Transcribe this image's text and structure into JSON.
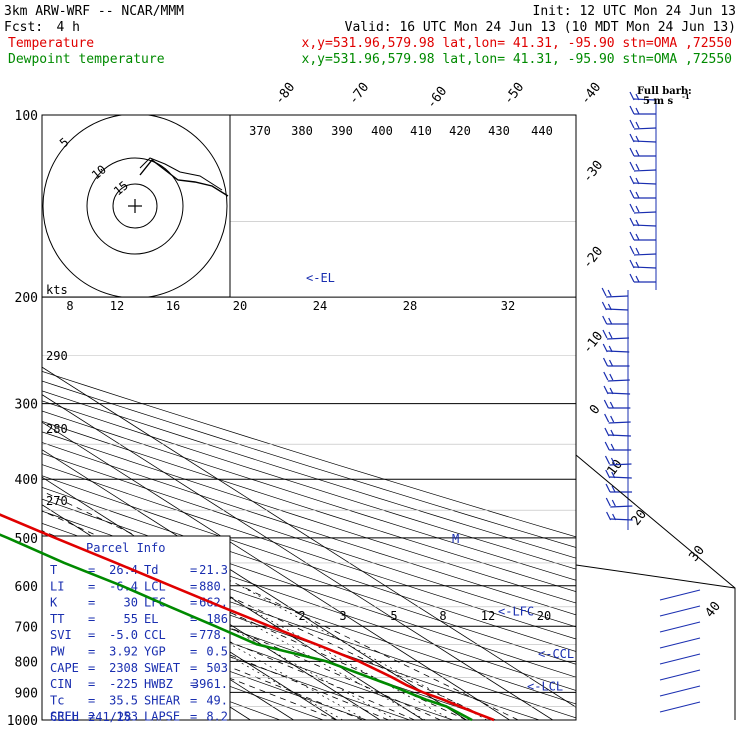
{
  "header": {
    "model": "3km ARW-WRF -- NCAR/MMM",
    "init": "Init: 12 UTC Mon 24 Jun 13",
    "fcst_label": "Fcst:",
    "fcst_value": "4 h",
    "valid": "Valid: 16 UTC Mon 24 Jun 13 (10 MDT Mon 24 Jun 13)",
    "temp_label": "Temperature",
    "temp_meta": "x,y=531.96,579.98   lat,lon= 41.31, -95.90  stn=OMA ,72550",
    "dew_label": "Dewpoint temperature",
    "dew_meta": "x,y=531.96,579.98   lat,lon= 41.31, -95.90  stn=OMA ,72550",
    "barb_title": "Full barb:",
    "barb_unit": "5 m s",
    "barb_sup": "-1"
  },
  "colors": {
    "temperature": "#e00000",
    "dewpoint": "#008a00",
    "text_blue": "#1a2fb0"
  },
  "chart_data": {
    "type": "line",
    "title": "",
    "ylabel": "",
    "pressure_levels": [
      100,
      200,
      300,
      400,
      500,
      600,
      700,
      800,
      900,
      1000
    ],
    "isotherm_labels": [
      "-80",
      "-70",
      "-60",
      "-50",
      "-40",
      "-30",
      "-20",
      "-10",
      "0",
      "10",
      "20",
      "30",
      "40"
    ],
    "theta_labels": [
      "370",
      "380",
      "390",
      "400",
      "410",
      "420",
      "430",
      "440"
    ],
    "dry_adiabat_labels": [
      "290",
      "280",
      "270"
    ],
    "mixing_ratio_labels": [
      "2",
      "3",
      "5",
      "8",
      "12",
      "20"
    ],
    "series": [
      {
        "name": "Temperature",
        "color": "#e00000",
        "points": [
          [
            1000,
            26.4
          ],
          [
            975,
            24.8
          ],
          [
            950,
            23.4
          ],
          [
            925,
            22.0
          ],
          [
            900,
            20.0
          ],
          [
            875,
            18.8
          ],
          [
            850,
            18.3
          ],
          [
            800,
            16.5
          ],
          [
            750,
            12.8
          ],
          [
            700,
            8.6
          ],
          [
            650,
            4.5
          ],
          [
            600,
            0.4
          ],
          [
            550,
            -4.0
          ],
          [
            500,
            -9.0
          ],
          [
            450,
            -14.2
          ],
          [
            400,
            -19.8
          ],
          [
            350,
            -26.2
          ],
          [
            300,
            -33.5
          ],
          [
            250,
            -42.3
          ],
          [
            200,
            -52.0
          ],
          [
            185,
            -54.0
          ],
          [
            175,
            -54.5
          ],
          [
            150,
            -56.5
          ],
          [
            130,
            -59.0
          ],
          [
            115,
            -62.0
          ],
          [
            100,
            -63.0
          ]
        ]
      },
      {
        "name": "Dewpoint temperature",
        "color": "#008a00",
        "points": [
          [
            1000,
            21.3
          ],
          [
            975,
            20.8
          ],
          [
            950,
            20.3
          ],
          [
            925,
            18.0
          ],
          [
            900,
            16.5
          ],
          [
            875,
            15.0
          ],
          [
            850,
            13.0
          ],
          [
            800,
            9.0
          ],
          [
            750,
            -1.0
          ],
          [
            700,
            -4.0
          ],
          [
            650,
            -7.5
          ],
          [
            600,
            -11.0
          ],
          [
            550,
            -16.0
          ],
          [
            500,
            -20.0
          ],
          [
            450,
            -25.5
          ],
          [
            400,
            -27.0
          ],
          [
            350,
            -30.0
          ],
          [
            300,
            -38.0
          ],
          [
            250,
            -49.0
          ],
          [
            200,
            -58.5
          ],
          [
            185,
            -62.0
          ],
          [
            170,
            -64.0
          ],
          [
            150,
            -69.0
          ],
          [
            130,
            -78.0
          ],
          [
            115,
            -82.5
          ],
          [
            100,
            -84.0
          ]
        ]
      }
    ],
    "levels_marked": [
      {
        "label": "<-EL",
        "pressure": 186
      },
      {
        "label": "<-LFC",
        "pressure": 662
      },
      {
        "label": "<-CCL",
        "pressure": 778
      },
      {
        "label": "<-LCL",
        "pressure": 880
      }
    ],
    "mid_marker": {
      "label": "M",
      "pressure": 500
    },
    "hodograph": {
      "rings": [
        "5",
        "10",
        "15"
      ],
      "speed_labels": [
        "8",
        "12",
        "16",
        "20",
        "24",
        "28",
        "32"
      ],
      "speed_unit": "kts"
    },
    "wind_barbs": {
      "title": "Full barb:",
      "inset_labels": [
        "30",
        "40"
      ]
    }
  },
  "parcel_info": {
    "title": "Parcel Info",
    "rows": [
      {
        "k1": "T",
        "v1": "26.4",
        "k2": "Td",
        "v2": "21.3"
      },
      {
        "k1": "LI",
        "v1": "-6.4",
        "k2": "LCL",
        "v2": "880."
      },
      {
        "k1": "K",
        "v1": "30",
        "k2": "LFC",
        "v2": "662."
      },
      {
        "k1": "TT",
        "v1": "55",
        "k2": "EL",
        "v2": "186"
      },
      {
        "k1": "SVI",
        "v1": "-5.0",
        "k2": "CCL",
        "v2": "778."
      },
      {
        "k1": "PW",
        "v1": "3.92",
        "k2": "YGP",
        "v2": "0.5"
      },
      {
        "k1": "CAPE",
        "v1": "2308",
        "k2": "SWEAT",
        "v2": "503"
      },
      {
        "k1": "CIN",
        "v1": "-225",
        "k2": "HWBZ",
        "v2": "3961."
      },
      {
        "k1": "Tc",
        "v1": "35.5",
        "k2": "SHEAR",
        "v2": "49."
      },
      {
        "k1": "SREH",
        "v1": "153",
        "k2": "LAPSE",
        "v2": "8.2"
      }
    ],
    "cell_label": "CELL",
    "cell_value": "241/28"
  }
}
